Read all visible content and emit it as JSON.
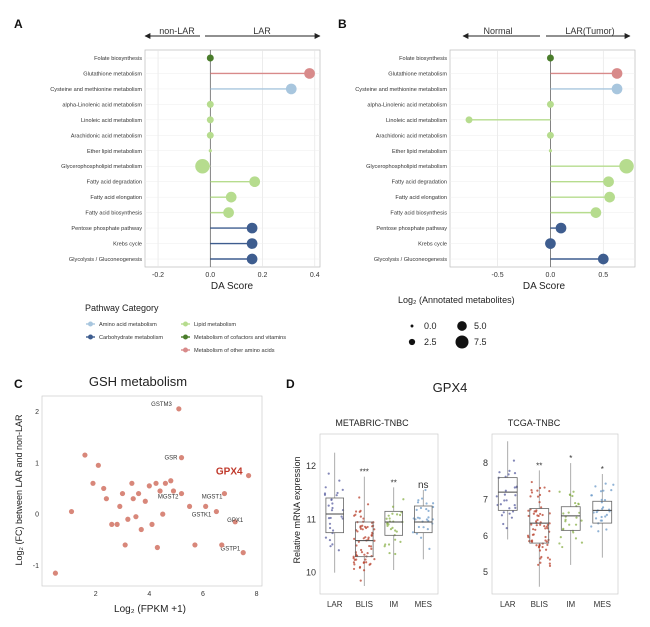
{
  "panel_letters": {
    "a": "A",
    "b": "B",
    "c": "C",
    "d": "D"
  },
  "colors": {
    "amino": "#a8c6de",
    "carbo": "#3e5d8f",
    "lipid": "#b6dc8e",
    "cofactor": "#4a7d2b",
    "other_amino": "#d88a8a",
    "scatter": "#d8877a"
  },
  "panel_a": {
    "arrow_left": "non-LAR",
    "arrow_right": "LAR"
  },
  "panel_b": {
    "arrow_left": "Normal",
    "arrow_right": "LAR(Tumor)"
  },
  "legend": {
    "title": "Pathway Category",
    "items": [
      "Amino acid metabolism",
      "Carbohydrate metabolism",
      "Lipid metabolism",
      "Metabolism of cofactors and vitamins",
      "Metabolism of other amino acids"
    ],
    "size_title": "Log₂ (Annotated metabolites)",
    "size_values": [
      "0.0",
      "2.5",
      "5.0",
      "7.5"
    ]
  },
  "panel_c": {
    "title": "GSH metabolism",
    "genes": [
      "GSTM3",
      "GSR",
      "GPX4",
      "MGST2",
      "MGST1",
      "GSTK1",
      "GPX1",
      "GSTP1"
    ]
  },
  "panel_d": {
    "title": "GPX4",
    "ylabel": "Relative mRNA expression",
    "left_title": "METABRIC-TNBC",
    "right_title": "TCGA-TNBC",
    "left_sig": [
      "***",
      "**",
      "ns"
    ],
    "right_sig": [
      "**",
      "*",
      "*"
    ]
  },
  "chart_data": [
    {
      "type": "lollipop",
      "panel": "A",
      "xlabel": "DA Score",
      "xlim": [
        -0.25,
        0.42
      ],
      "xticks": [
        "-0.2",
        "0.0",
        "0.2",
        "0.4"
      ],
      "pathways": [
        "Folate biosynthesis",
        "Glutathione metabolism",
        "Cysteine and methionine metabolism",
        "alpha-Linolenic acid metabolism",
        "Linoleic acid metabolism",
        "Arachidonic acid metabolism",
        "Ether lipid metabolism",
        "Glycerophospholipid metabolism",
        "Fatty acid degradation",
        "Fatty acid elongation",
        "Fatty acid biosynthesis",
        "Pentose phosphate pathway",
        "Krebs cycle",
        "Glycolysis / Gluconeogenesis"
      ],
      "values": [
        0.0,
        0.38,
        0.31,
        0.0,
        0.0,
        0.0,
        0.0,
        -0.03,
        0.17,
        0.08,
        0.07,
        0.16,
        0.16,
        0.16
      ],
      "categories": [
        "cofactor",
        "other_amino",
        "amino",
        "lipid",
        "lipid",
        "lipid",
        "lipid",
        "lipid",
        "lipid",
        "lipid",
        "lipid",
        "carbo",
        "carbo",
        "carbo"
      ],
      "sizes": [
        2.5,
        5.0,
        5.0,
        2.5,
        2.5,
        2.5,
        0.0,
        7.5,
        5.0,
        5.0,
        5.0,
        5.0,
        5.0,
        5.0
      ]
    },
    {
      "type": "lollipop",
      "panel": "B",
      "xlabel": "DA Score",
      "xlim": [
        -0.95,
        0.8
      ],
      "xticks": [
        "-0.5",
        "0.0",
        "0.5"
      ],
      "pathways": [
        "Folate biosynthesis",
        "Glutathione metabolism",
        "Cysteine and methionine metabolism",
        "alpha-Linolenic acid metabolism",
        "Linoleic acid metabolism",
        "Arachidonic acid metabolism",
        "Ether lipid metabolism",
        "Glycerophospholipid metabolism",
        "Fatty acid degradation",
        "Fatty acid elongation",
        "Fatty acid biosynthesis",
        "Pentose phosphate pathway",
        "Krebs cycle",
        "Glycolysis / Gluconeogenesis"
      ],
      "values": [
        0.0,
        0.63,
        0.63,
        0.0,
        -0.77,
        0.0,
        0.0,
        0.72,
        0.55,
        0.56,
        0.43,
        0.1,
        0.0,
        0.5
      ],
      "categories": [
        "cofactor",
        "other_amino",
        "amino",
        "lipid",
        "lipid",
        "lipid",
        "lipid",
        "lipid",
        "lipid",
        "lipid",
        "lipid",
        "carbo",
        "carbo",
        "carbo"
      ],
      "sizes": [
        2.5,
        5.0,
        5.0,
        2.5,
        2.5,
        2.5,
        0.0,
        7.5,
        5.0,
        5.0,
        5.0,
        5.0,
        5.0,
        5.0
      ]
    },
    {
      "type": "scatter",
      "panel": "C",
      "title": "GSH metabolism",
      "xlabel": "Log₂ (FPKM +1)",
      "ylabel": "Log₂ (FC) between LAR and non-LAR",
      "xlim": [
        0,
        8.2
      ],
      "ylim": [
        -1.4,
        2.3
      ],
      "xticks": [
        "2",
        "4",
        "6",
        "8"
      ],
      "yticks": [
        "-1",
        "0",
        "1",
        "2"
      ],
      "points": [
        {
          "x": 5.1,
          "y": 2.05,
          "label": "GSTM3"
        },
        {
          "x": 5.2,
          "y": 1.1,
          "label": "GSR"
        },
        {
          "x": 7.7,
          "y": 0.75,
          "label": "GPX4"
        },
        {
          "x": 5.2,
          "y": 0.4,
          "label": "MGST2"
        },
        {
          "x": 6.8,
          "y": 0.4,
          "label": "MGST1"
        },
        {
          "x": 6.5,
          "y": 0.05,
          "label": "GSTK1"
        },
        {
          "x": 7.2,
          "y": -0.15,
          "label": "GPX1"
        },
        {
          "x": 7.5,
          "y": -0.75,
          "label": "GSTP1"
        },
        {
          "x": 0.5,
          "y": -1.15
        },
        {
          "x": 1.1,
          "y": 0.05
        },
        {
          "x": 1.6,
          "y": 1.15
        },
        {
          "x": 1.9,
          "y": 0.6
        },
        {
          "x": 2.1,
          "y": 0.95
        },
        {
          "x": 2.3,
          "y": 0.5
        },
        {
          "x": 2.4,
          "y": 0.3
        },
        {
          "x": 2.6,
          "y": -0.2
        },
        {
          "x": 2.8,
          "y": -0.2
        },
        {
          "x": 2.9,
          "y": 0.15
        },
        {
          "x": 3.0,
          "y": 0.4
        },
        {
          "x": 3.1,
          "y": -0.6
        },
        {
          "x": 3.2,
          "y": -0.1
        },
        {
          "x": 3.35,
          "y": 0.6
        },
        {
          "x": 3.4,
          "y": 0.3
        },
        {
          "x": 3.5,
          "y": -0.05
        },
        {
          "x": 3.6,
          "y": 0.4
        },
        {
          "x": 3.7,
          "y": -0.3
        },
        {
          "x": 3.85,
          "y": 0.25
        },
        {
          "x": 4.0,
          "y": 0.55
        },
        {
          "x": 4.1,
          "y": -0.2
        },
        {
          "x": 4.25,
          "y": 0.6
        },
        {
          "x": 4.4,
          "y": 0.45
        },
        {
          "x": 4.5,
          "y": 0.0
        },
        {
          "x": 4.6,
          "y": 0.6
        },
        {
          "x": 4.8,
          "y": 0.65
        },
        {
          "x": 4.9,
          "y": 0.45
        },
        {
          "x": 4.3,
          "y": -0.65
        },
        {
          "x": 5.5,
          "y": 0.15
        },
        {
          "x": 5.7,
          "y": -0.6
        },
        {
          "x": 6.1,
          "y": 0.15
        },
        {
          "x": 6.7,
          "y": -0.6
        }
      ]
    },
    {
      "type": "box",
      "panel": "D-left",
      "title": "METABRIC-TNBC",
      "ylabel": "Relative mRNA expression",
      "ylim": [
        9.6,
        12.6
      ],
      "yticks": [
        "10",
        "11",
        "12"
      ],
      "categories": [
        "LAR",
        "BLIS",
        "IM",
        "MES"
      ],
      "boxes": [
        {
          "min": 10.0,
          "q1": 10.75,
          "median": 11.1,
          "q3": 11.4,
          "max": 12.25
        },
        {
          "min": 9.75,
          "q1": 10.3,
          "median": 10.6,
          "q3": 10.95,
          "max": 11.8
        },
        {
          "min": 10.05,
          "q1": 10.7,
          "median": 10.95,
          "q3": 11.15,
          "max": 11.6
        },
        {
          "min": 10.25,
          "q1": 10.75,
          "median": 10.95,
          "q3": 11.25,
          "max": 11.55
        }
      ],
      "colors": [
        "#5a5fa0",
        "#b8412e",
        "#8ab04a",
        "#6b9ac8"
      ]
    },
    {
      "type": "box",
      "panel": "D-right",
      "title": "TCGA-TNBC",
      "ylim": [
        4.4,
        8.8
      ],
      "yticks": [
        "5",
        "6",
        "7",
        "8"
      ],
      "categories": [
        "LAR",
        "BLIS",
        "IM",
        "MES"
      ],
      "boxes": [
        {
          "min": 5.9,
          "q1": 6.7,
          "median": 7.2,
          "q3": 7.6,
          "max": 8.6
        },
        {
          "min": 4.6,
          "q1": 5.8,
          "median": 6.35,
          "q3": 6.75,
          "max": 7.8
        },
        {
          "min": 5.2,
          "q1": 6.15,
          "median": 6.55,
          "q3": 6.8,
          "max": 8.0
        },
        {
          "min": 5.4,
          "q1": 6.35,
          "median": 6.7,
          "q3": 6.95,
          "max": 7.7
        }
      ],
      "colors": [
        "#5a5fa0",
        "#b8412e",
        "#8ab04a",
        "#6b9ac8"
      ]
    }
  ]
}
